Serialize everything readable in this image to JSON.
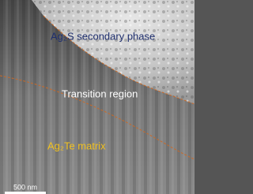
{
  "labels": {
    "secondary_phase": "Ag₂S secondary phase",
    "transition": "Transition region",
    "matrix": "Ag₂Te matrix"
  },
  "scale_bar": {
    "label": "500 nm"
  }
}
